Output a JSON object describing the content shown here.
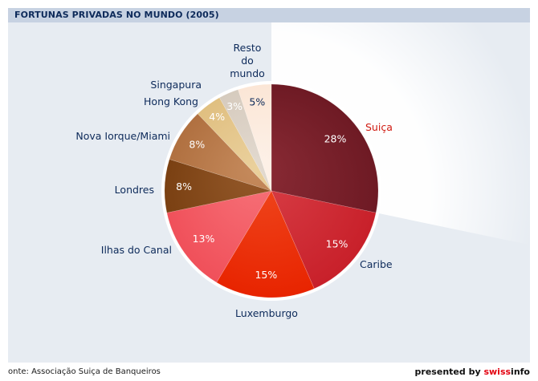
{
  "header": {
    "title": "FORTUNAS PRIVADAS NO MUNDO (2005)"
  },
  "footer": {
    "source": "onte: Associação Suiça de Banqueiros",
    "credit_prefix": "presented by",
    "credit_brand_a": "swiss",
    "credit_brand_b": "info"
  },
  "chart_data": {
    "type": "pie",
    "title": "FORTUNAS PRIVADAS NO MUNDO (2005)",
    "unit": "%",
    "slices": [
      {
        "label": "Suiça",
        "value": 28,
        "pct_label": "28%",
        "color": "#6e1a24",
        "color_light": "#8a2b35",
        "highlight": true
      },
      {
        "label": "Caribe",
        "value": 15,
        "pct_label": "15%",
        "color": "#c8202a",
        "color_light": "#d94048"
      },
      {
        "label": "Luxemburgo",
        "value": 15,
        "pct_label": "15%",
        "color": "#e82400",
        "color_light": "#f04a20"
      },
      {
        "label": "Ilhas do Canal",
        "value": 13,
        "pct_label": "13%",
        "color": "#f0505a",
        "color_light": "#f7737a"
      },
      {
        "label": "Londres",
        "value": 8,
        "pct_label": "8%",
        "color": "#7a4012",
        "color_light": "#94592a"
      },
      {
        "label": "Nova Iorque/Miami",
        "value": 8,
        "pct_label": "8%",
        "color": "#b07040",
        "color_light": "#c58a5c"
      },
      {
        "label": "Hong Kong",
        "value": 4,
        "pct_label": "4%",
        "color": "#e0bf80",
        "color_light": "#ead09c"
      },
      {
        "label": "Singapura",
        "value": 3,
        "pct_label": "3%",
        "color": "#d6cbbe",
        "color_light": "#e2d9cf"
      },
      {
        "label": "Resto do mundo",
        "label_lines": [
          "Resto",
          "do",
          "mundo"
        ],
        "value": 5,
        "pct_label": "5%",
        "color": "#fbe6d6",
        "color_light": "#fdf1e8"
      }
    ]
  }
}
